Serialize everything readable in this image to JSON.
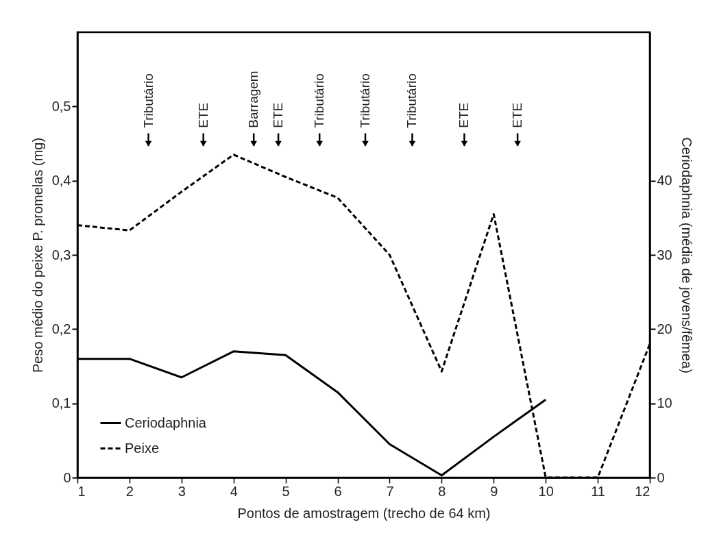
{
  "chart_data": {
    "type": "line",
    "xlabel": "Pontos de amostragem (trecho de 64 km)",
    "ylabel": "Peso médio do peixe P. promelas (mg)",
    "y2label": "Ceriodaphnia (média de jovens/fêmea)",
    "x": [
      1,
      2,
      3,
      4,
      5,
      6,
      7,
      8,
      9,
      10,
      11,
      12
    ],
    "series": [
      {
        "name": "Ceriodaphnia",
        "color": "#000000",
        "axis": "y2",
        "line_style": "solid",
        "values": [
          16,
          16,
          13.5,
          17,
          16.5,
          11.5,
          4.5,
          0.3,
          5.5,
          10.5,
          null,
          null
        ]
      },
      {
        "name": "Peixe",
        "color": "#000000",
        "axis": "y",
        "line_style": "dashed",
        "values": [
          0.34,
          0.333,
          0.385,
          0.435,
          0.405,
          0.377,
          0.3,
          0.143,
          0.355,
          0,
          0,
          0.18
        ]
      }
    ],
    "xlim": [
      1,
      12
    ],
    "xticks": [
      1,
      2,
      3,
      4,
      5,
      6,
      7,
      8,
      9,
      10,
      11,
      12
    ],
    "ylim": [
      0,
      0.6
    ],
    "yticks": [
      0,
      {
        "value": 0.1,
        "label": "0,1"
      },
      {
        "value": 0.2,
        "label": "0,2"
      },
      {
        "value": 0.3,
        "label": "0,3"
      },
      {
        "value": 0.4,
        "label": "0,4"
      },
      {
        "value": 0.5,
        "label": "0,5"
      }
    ],
    "y2lim": [
      0,
      60
    ],
    "y2ticks": [
      0,
      10,
      20,
      30,
      40
    ],
    "annotations": [
      "Tributário",
      "ETE",
      "Barragem",
      "ETE",
      "Tributário",
      "Tributário",
      "Tributário",
      "ETE",
      "ETE"
    ],
    "legend": "bottom left",
    "grid": false
  }
}
